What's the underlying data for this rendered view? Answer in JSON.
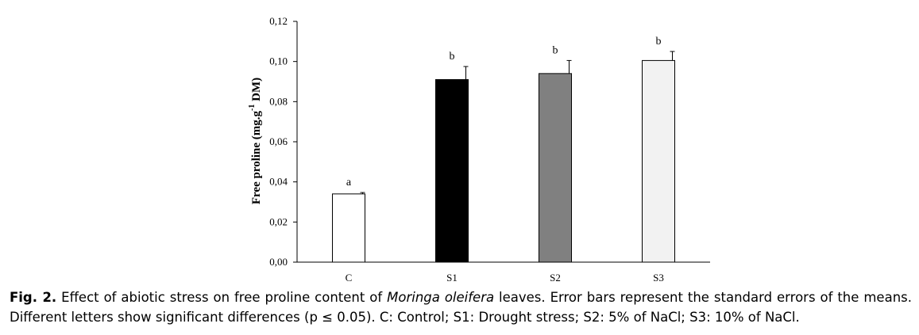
{
  "chart_data": {
    "type": "bar",
    "categories": [
      "C",
      "S1",
      "S2",
      "S3"
    ],
    "values": [
      0.034,
      0.091,
      0.094,
      0.1005
    ],
    "errors": [
      0.0007,
      0.0065,
      0.0065,
      0.0045
    ],
    "significance_letters": [
      "a",
      "b",
      "b",
      "b"
    ],
    "bar_colors": [
      "#ffffff",
      "#000000",
      "#808080",
      "#f2f2f2"
    ],
    "ylabel_main": "Free proline (mg.g",
    "ylabel_sup": "-1",
    "ylabel_tail": " DM)",
    "ylim": [
      0,
      0.12
    ],
    "yticks": [
      0,
      0.02,
      0.04,
      0.06,
      0.08,
      0.1,
      0.12
    ],
    "ytick_labels": [
      "0,00",
      "0,02",
      "0,04",
      "0,06",
      "0,08",
      "0,10",
      "0,12"
    ],
    "grid": false,
    "legend": "none"
  },
  "caption": {
    "fig_label": "Fig. 2.",
    "text_before_species": " Effect of abiotic stress on free proline content of ",
    "species": "Moringa oleifera",
    "text_after_species": " leaves. Error bars represent the standard errors of the means. Different letters show significant differences (p ≤ 0.05). C: Control; S1: Drought stress; S2: 5% of NaCl; S3: 10% of NaCl."
  }
}
